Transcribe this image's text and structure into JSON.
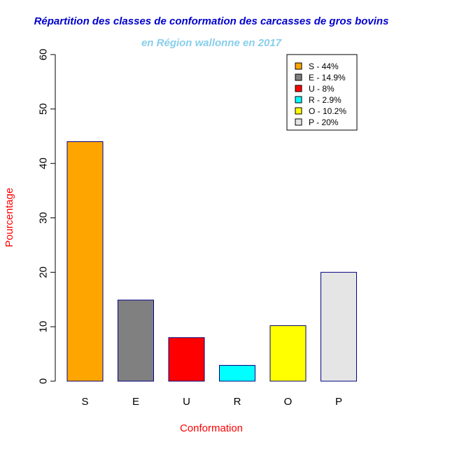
{
  "chart_data": {
    "type": "bar",
    "title": "Répartition des classes de conformation des carcasses de gros bovins",
    "subtitle": "en Région wallonne en 2017",
    "xlabel": "Conformation",
    "ylabel": "Pourcentage",
    "ylim": [
      0,
      60
    ],
    "yticks": [
      "0",
      "10",
      "20",
      "30",
      "40",
      "50",
      "60"
    ],
    "categories": [
      "S",
      "E",
      "U",
      "R",
      "O",
      "P"
    ],
    "values": [
      44,
      14.9,
      8,
      2.9,
      10.2,
      20
    ],
    "colors": [
      "#FFA500",
      "#808080",
      "#FF0000",
      "#00FFFF",
      "#FFFF00",
      "#E5E5E5"
    ],
    "legend": {
      "position": "top-right",
      "entries": [
        "S - 44%",
        "E - 14.9%",
        "U - 8%",
        "R - 2.9%",
        "O - 10.2%",
        "P - 20%"
      ]
    },
    "grid": false,
    "colors_meta": {
      "title": "#0000CD",
      "subtitle": "#87CEEB",
      "axis_label": "#FF0000",
      "bar_border": "#000080"
    }
  }
}
